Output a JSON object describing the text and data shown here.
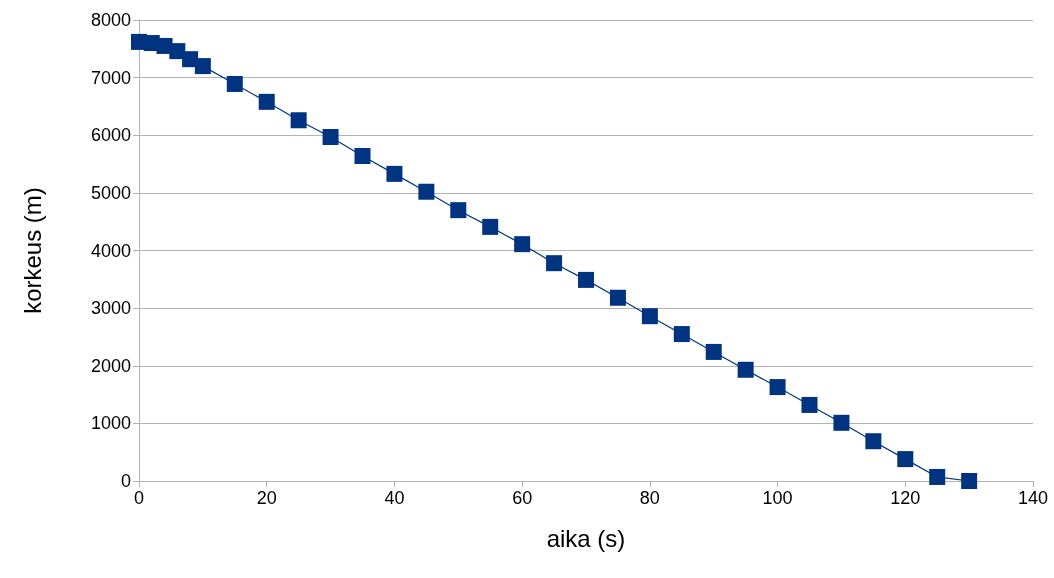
{
  "chart_data": {
    "type": "line",
    "xlabel": "aika (s)",
    "ylabel": "korkeus (m)",
    "x": [
      0,
      2,
      4,
      6,
      8,
      10,
      15,
      20,
      25,
      30,
      35,
      40,
      45,
      50,
      55,
      60,
      65,
      70,
      75,
      80,
      85,
      90,
      95,
      100,
      105,
      110,
      115,
      120,
      125,
      130
    ],
    "series": [
      {
        "color": "#003380",
        "values": [
          7620,
          7600,
          7550,
          7460,
          7320,
          7200,
          6890,
          6580,
          6260,
          5970,
          5640,
          5330,
          5020,
          4700,
          4410,
          4110,
          3780,
          3490,
          3180,
          2860,
          2550,
          2240,
          1930,
          1630,
          1320,
          1010,
          690,
          380,
          70,
          0
        ]
      }
    ],
    "xlim": [
      0,
      140
    ],
    "xticks": [
      0,
      20,
      40,
      60,
      80,
      100,
      120,
      140
    ],
    "ylim": [
      0,
      8000
    ],
    "yticks": [
      0,
      1000,
      2000,
      3000,
      4000,
      5000,
      6000,
      7000,
      8000
    ],
    "grid": "y",
    "marker": "square",
    "line_style": "solid"
  }
}
